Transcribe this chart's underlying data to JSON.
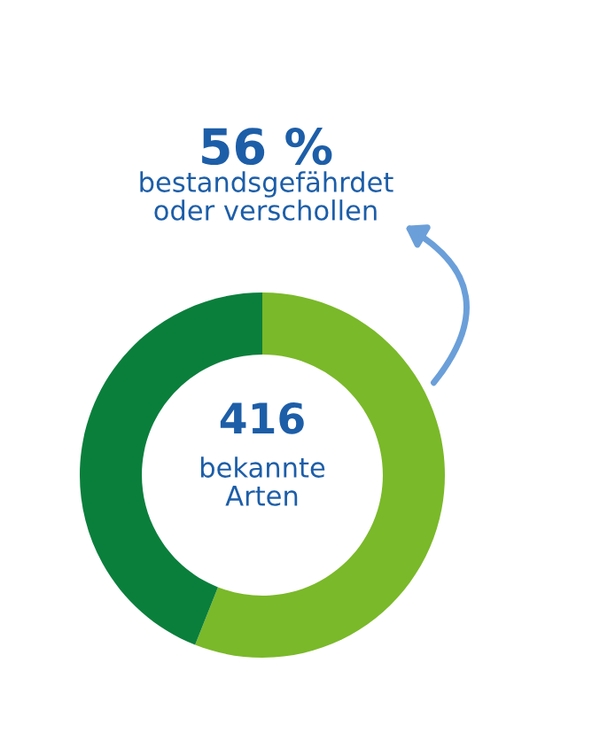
{
  "chart_data": {
    "type": "donut",
    "categories": [
      null,
      null
    ],
    "values": [
      56,
      44
    ],
    "colors": [
      "#7ab929",
      "#0a7f3c"
    ],
    "annotations": [
      "56 %",
      "bestandsgefährdet\noder verschollen",
      "416",
      "bekannte\nArten"
    ]
  }
}
